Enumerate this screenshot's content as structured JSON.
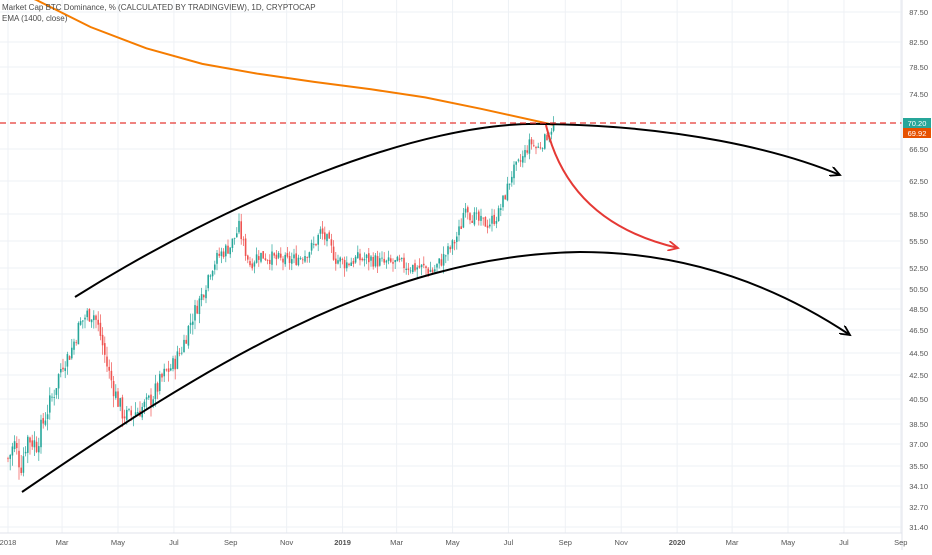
{
  "header": {
    "title": "Market Cap BTC Dominance, % (CALCULATED BY TRADINGVIEW), 1D, CRYPTOCAP",
    "indicator": "EMA (1400, close)"
  },
  "colors": {
    "bull": "#26a69a",
    "bear": "#ef5350",
    "ema": "#f57c00",
    "hline": "#e53935",
    "curve": "#000000",
    "arrow": "#e53935",
    "grid": "#eef1f5",
    "axis_text": "#555555",
    "price_label_bg": "#26a69a",
    "ema_label_bg": "#e65100"
  },
  "price_labels": {
    "last": "70.20",
    "ema": "69.92"
  },
  "chart_data": {
    "type": "candlestick",
    "title": "Market Cap BTC Dominance, % (CALCULATED BY TRADINGVIEW), 1D, CRYPTOCAP",
    "x_tick_labels": [
      "2018",
      "Mar",
      "May",
      "Jul",
      "Sep",
      "Nov",
      "2019",
      "Mar",
      "May",
      "Jul",
      "Sep",
      "Nov",
      "2020",
      "Mar",
      "May",
      "Jul",
      "Sep"
    ],
    "x_tick_dates": [
      "2018-01-01",
      "2018-03-01",
      "2018-05-01",
      "2018-07-01",
      "2018-09-01",
      "2018-11-01",
      "2019-01-01",
      "2019-03-01",
      "2019-05-01",
      "2019-07-01",
      "2019-09-01",
      "2019-11-01",
      "2020-01-01",
      "2020-03-01",
      "2020-05-01",
      "2020-07-01",
      "2020-09-01"
    ],
    "y_tick_labels": [
      "87.50",
      "82.50",
      "78.50",
      "74.50",
      "66.50",
      "62.50",
      "58.50",
      "55.50",
      "52.50",
      "50.50",
      "48.50",
      "46.50",
      "44.50",
      "42.50",
      "40.50",
      "38.50",
      "37.00",
      "35.50",
      "34.10",
      "32.70",
      "31.40"
    ],
    "series": [
      {
        "name": "BTC Dominance",
        "approx_close_path": [
          [
            "2018-01-01",
            36
          ],
          [
            "2018-01-08",
            37
          ],
          [
            "2018-01-15",
            35.5
          ],
          [
            "2018-01-22",
            37.5
          ],
          [
            "2018-02-01",
            37
          ],
          [
            "2018-02-10",
            39
          ],
          [
            "2018-02-20",
            41
          ],
          [
            "2018-03-01",
            43.5
          ],
          [
            "2018-03-10",
            44.5
          ],
          [
            "2018-03-20",
            47
          ],
          [
            "2018-03-28",
            48
          ],
          [
            "2018-04-05",
            48
          ],
          [
            "2018-04-12",
            46
          ],
          [
            "2018-04-20",
            43
          ],
          [
            "2018-04-28",
            41
          ],
          [
            "2018-05-05",
            39.5
          ],
          [
            "2018-05-12",
            39
          ],
          [
            "2018-05-20",
            39.5
          ],
          [
            "2018-06-01",
            40
          ],
          [
            "2018-06-10",
            41
          ],
          [
            "2018-06-20",
            42.5
          ],
          [
            "2018-07-01",
            43.5
          ],
          [
            "2018-07-10",
            45
          ],
          [
            "2018-07-20",
            47.5
          ],
          [
            "2018-08-01",
            50
          ],
          [
            "2018-08-10",
            52.5
          ],
          [
            "2018-08-20",
            54
          ],
          [
            "2018-09-01",
            55
          ],
          [
            "2018-09-10",
            57
          ],
          [
            "2018-09-15",
            55
          ],
          [
            "2018-09-22",
            53
          ],
          [
            "2018-10-01",
            54
          ],
          [
            "2018-10-10",
            53.8
          ],
          [
            "2018-10-20",
            53.5
          ],
          [
            "2018-11-01",
            53.2
          ],
          [
            "2018-11-10",
            53.5
          ],
          [
            "2018-11-20",
            54
          ],
          [
            "2018-12-01",
            55
          ],
          [
            "2018-12-08",
            56.5
          ],
          [
            "2018-12-15",
            55.5
          ],
          [
            "2018-12-25",
            53.5
          ],
          [
            "2019-01-05",
            53
          ],
          [
            "2019-01-15",
            53.5
          ],
          [
            "2019-02-01",
            53.5
          ],
          [
            "2019-02-15",
            53
          ],
          [
            "2019-03-01",
            53
          ],
          [
            "2019-03-15",
            52.7
          ],
          [
            "2019-04-01",
            52.5
          ],
          [
            "2019-04-10",
            52.2
          ],
          [
            "2019-04-20",
            53.5
          ],
          [
            "2019-05-01",
            55
          ],
          [
            "2019-05-10",
            57
          ],
          [
            "2019-05-15",
            60
          ],
          [
            "2019-05-20",
            58.5
          ],
          [
            "2019-06-01",
            57.5
          ],
          [
            "2019-06-10",
            57.5
          ],
          [
            "2019-06-20",
            58.5
          ],
          [
            "2019-06-28",
            61
          ],
          [
            "2019-07-05",
            63.5
          ],
          [
            "2019-07-15",
            65
          ],
          [
            "2019-07-25",
            67.5
          ],
          [
            "2019-08-01",
            66.5
          ],
          [
            "2019-08-08",
            67.5
          ],
          [
            "2019-08-15",
            69
          ],
          [
            "2019-08-20",
            70.2
          ]
        ]
      },
      {
        "name": "EMA (1400, close)",
        "approx_path": [
          [
            "2017-12-25",
            92
          ],
          [
            "2018-02-01",
            89.5
          ],
          [
            "2018-04-01",
            85
          ],
          [
            "2018-06-01",
            81.5
          ],
          [
            "2018-08-01",
            79
          ],
          [
            "2018-10-01",
            77.5
          ],
          [
            "2018-12-01",
            76.3
          ],
          [
            "2019-02-01",
            75.2
          ],
          [
            "2019-04-01",
            74
          ],
          [
            "2019-06-01",
            72.3
          ],
          [
            "2019-08-20",
            69.92
          ]
        ]
      }
    ],
    "horizontal_line": {
      "value": 70.2,
      "style": "dashed"
    },
    "annotations": [
      {
        "type": "arc",
        "description": "upper black arc from 2018-03 through a peak near 2019-09 to a down arrow near 2020-07"
      },
      {
        "type": "arc",
        "description": "lower black arc from 2018-01 through a peak near 2019-09 to a down arrow near 2020-07"
      },
      {
        "type": "arrow",
        "description": "red curved arrow from 2019-08 down to about 55 in 2019-11"
      }
    ],
    "grid": true,
    "legend": "top-left"
  }
}
